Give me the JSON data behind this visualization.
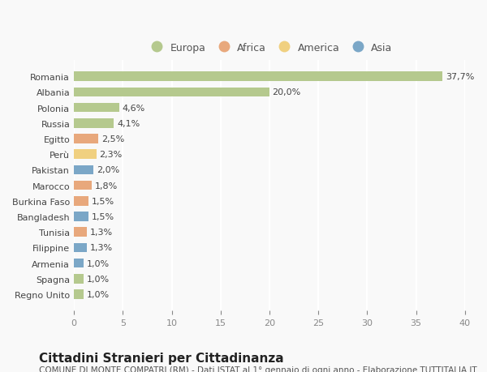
{
  "countries": [
    "Romania",
    "Albania",
    "Polonia",
    "Russia",
    "Egitto",
    "Perù",
    "Pakistan",
    "Marocco",
    "Burkina Faso",
    "Bangladesh",
    "Tunisia",
    "Filippine",
    "Armenia",
    "Spagna",
    "Regno Unito"
  ],
  "values": [
    37.7,
    20.0,
    4.6,
    4.1,
    2.5,
    2.3,
    2.0,
    1.8,
    1.5,
    1.5,
    1.3,
    1.3,
    1.0,
    1.0,
    1.0
  ],
  "labels": [
    "37,7%",
    "20,0%",
    "4,6%",
    "4,1%",
    "2,5%",
    "2,3%",
    "2,0%",
    "1,8%",
    "1,5%",
    "1,5%",
    "1,3%",
    "1,3%",
    "1,0%",
    "1,0%",
    "1,0%"
  ],
  "continents": [
    "Europa",
    "Europa",
    "Europa",
    "Europa",
    "Africa",
    "America",
    "Asia",
    "Africa",
    "Africa",
    "Asia",
    "Africa",
    "Asia",
    "Asia",
    "Europa",
    "Europa"
  ],
  "colors": {
    "Europa": "#b5c98e",
    "Africa": "#e8a87c",
    "America": "#f0d080",
    "Asia": "#7ba7c7"
  },
  "legend_order": [
    "Europa",
    "Africa",
    "America",
    "Asia"
  ],
  "xlim": [
    0,
    40
  ],
  "xticks": [
    0,
    5,
    10,
    15,
    20,
    25,
    30,
    35,
    40
  ],
  "title": "Cittadini Stranieri per Cittadinanza",
  "subtitle": "COMUNE DI MONTE COMPATRI (RM) - Dati ISTAT al 1° gennaio di ogni anno - Elaborazione TUTTITALIA.IT",
  "background_color": "#f9f9f9",
  "grid_color": "#ffffff",
  "bar_height": 0.6,
  "label_fontsize": 8,
  "tick_fontsize": 8,
  "title_fontsize": 11,
  "subtitle_fontsize": 7.5
}
